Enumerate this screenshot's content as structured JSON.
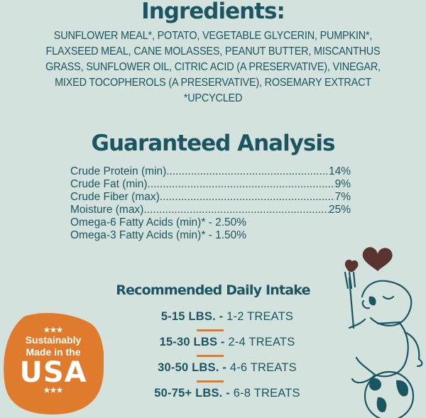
{
  "ingredients": {
    "title": "Ingredients:",
    "text": "Sunflower meal*, potato, vegetable glycerin, pumpkin*, flaxseed meal, cane molasses, peanut butter, miscanthus grass, sunflower oil, citric acid (a preservative), vinegar, mixed tocopherols (a preservative), rosemary extract *Upcycled"
  },
  "analysis": {
    "title": "Guaranteed Analysis",
    "rows": [
      {
        "label": "Crude Protein (min) ",
        "value": "14%"
      },
      {
        "label": "Crude Fat (min) ",
        "value": "9%"
      },
      {
        "label": "Crude Fiber (max) ",
        "value": "7%"
      },
      {
        "label": "Moisture (max)",
        "value": "25%"
      }
    ],
    "extras": [
      "Omega-6 Fatty Acids (min)* - 2.50%",
      "Omega-3 Fatty Acids (min)* - 1.50%"
    ]
  },
  "intake": {
    "title": "Recommended Daily Intake",
    "rows": [
      {
        "weight": "5-15 LBS. - ",
        "treats": "1-2 TREATS"
      },
      {
        "weight": "15-30 LBS - ",
        "treats": "2-4 TREATS"
      },
      {
        "weight": "30-50 LBS. - ",
        "treats": "4-6 TREATS"
      },
      {
        "weight": "50-75+ LBS. - ",
        "treats": "6-8 TREATS"
      }
    ]
  },
  "badge": {
    "stars": "★★★",
    "line1": "Sustainably",
    "line2": "Made in the",
    "line3": "USA",
    "color": "#e07a2c"
  },
  "colors": {
    "background": "#d3e2dd",
    "text": "#1b5562",
    "accent": "#e07a2c"
  }
}
